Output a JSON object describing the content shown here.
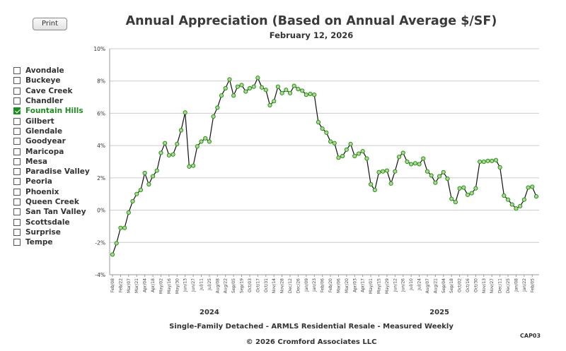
{
  "toolbar": {
    "print_label": "Print"
  },
  "header": {
    "title": "Annual Appreciation (Based on Annual Average $/SF)",
    "date": "February 12, 2026"
  },
  "cities": [
    {
      "label": "Avondale",
      "checked": false
    },
    {
      "label": "Buckeye",
      "checked": false
    },
    {
      "label": "Cave Creek",
      "checked": false
    },
    {
      "label": "Chandler",
      "checked": false
    },
    {
      "label": "Fountain Hills",
      "checked": true
    },
    {
      "label": "Gilbert",
      "checked": false
    },
    {
      "label": "Glendale",
      "checked": false
    },
    {
      "label": "Goodyear",
      "checked": false
    },
    {
      "label": "Maricopa",
      "checked": false
    },
    {
      "label": "Mesa",
      "checked": false
    },
    {
      "label": "Paradise Valley",
      "checked": false
    },
    {
      "label": "Peoria",
      "checked": false
    },
    {
      "label": "Phoenix",
      "checked": false
    },
    {
      "label": "Queen Creek",
      "checked": false
    },
    {
      "label": "San Tan Valley",
      "checked": false
    },
    {
      "label": "Scottsdale",
      "checked": false
    },
    {
      "label": "Surprise",
      "checked": false
    },
    {
      "label": "Tempe",
      "checked": false
    }
  ],
  "footer": {
    "description": "Single-Family Detached - ARMLS Residential Resale - Measured Weekly",
    "copyright": "© 2026 Cromford Associates LLC",
    "chart_code": "CAP03"
  },
  "colors": {
    "line": "#111111",
    "marker_fill": "#a6e07a",
    "marker_stroke": "#2e8b2e",
    "grid": "#cccccc",
    "accent": "#1e8f1e"
  },
  "chart_data": {
    "type": "line",
    "title": "Annual Appreciation (Based on Annual Average $/SF)",
    "subtitle": "February 12, 2026",
    "xlabel": "",
    "ylabel": "",
    "ylim": [
      -4,
      10
    ],
    "y_ticks": [
      -4,
      -2,
      0,
      2,
      4,
      6,
      8,
      10
    ],
    "y_tick_labels": [
      "-4%",
      "-2%",
      "0%",
      "2%",
      "4%",
      "6%",
      "8%",
      "10%"
    ],
    "grid": true,
    "x_tick_labels": [
      "Feb/08",
      "Feb/22",
      "Mar/07",
      "Mar/21",
      "Apr/04",
      "Apr/18",
      "May/02",
      "May/16",
      "May/30",
      "Jun/13",
      "Jun/27",
      "Jul/11",
      "Jul/25",
      "Aug/08",
      "Aug/22",
      "Sep/05",
      "Sep/19",
      "Oct/03",
      "Oct/17",
      "Oct/31",
      "Nov/14",
      "Nov/28",
      "Dec/12",
      "Dec/26",
      "Jan/09",
      "Jan/23",
      "Feb/06",
      "Feb/20",
      "Mar/06",
      "Mar/20",
      "Apr/03",
      "Apr/17",
      "May/01",
      "May/15",
      "May/29",
      "Jun/12",
      "Jun/26",
      "Jul/10",
      "Jul/24",
      "Aug/07",
      "Aug/21",
      "Sep/04",
      "Sep/18",
      "Oct/02",
      "Oct/16",
      "Oct/30",
      "Nov/13",
      "Nov/27",
      "Dec/11",
      "Dec/25",
      "Jan/08",
      "Jan/22",
      "Feb/05"
    ],
    "year_labels": [
      {
        "label": "2024",
        "week_index": 24
      },
      {
        "label": "2025",
        "week_index": 81
      }
    ],
    "series": [
      {
        "name": "Fountain Hills",
        "values": [
          -2.75,
          -2.05,
          -1.1,
          -1.1,
          -0.15,
          0.55,
          1.0,
          1.25,
          2.3,
          1.6,
          2.1,
          2.45,
          3.55,
          4.15,
          3.4,
          3.45,
          4.1,
          4.95,
          6.05,
          2.7,
          2.75,
          3.95,
          4.25,
          4.45,
          4.25,
          5.8,
          6.35,
          7.1,
          7.55,
          8.1,
          7.1,
          7.65,
          7.75,
          7.35,
          7.55,
          7.65,
          8.2,
          7.6,
          7.45,
          6.5,
          6.75,
          7.65,
          7.25,
          7.45,
          7.25,
          7.7,
          7.5,
          7.4,
          7.15,
          7.2,
          7.15,
          5.45,
          5.05,
          4.8,
          4.25,
          4.15,
          3.25,
          3.35,
          3.75,
          4.1,
          3.35,
          3.5,
          3.65,
          3.2,
          1.6,
          1.25,
          2.35,
          2.4,
          2.45,
          1.65,
          2.4,
          3.3,
          3.55,
          3.0,
          2.85,
          2.9,
          2.85,
          3.2,
          2.4,
          2.15,
          1.7,
          2.1,
          2.35,
          1.95,
          0.7,
          0.5,
          1.35,
          1.4,
          0.95,
          1.05,
          1.35,
          3.0,
          3.0,
          3.05,
          3.05,
          3.1,
          2.65,
          0.9,
          0.65,
          0.35,
          0.1,
          0.25,
          0.65,
          1.4,
          1.45,
          0.85
        ]
      }
    ]
  }
}
